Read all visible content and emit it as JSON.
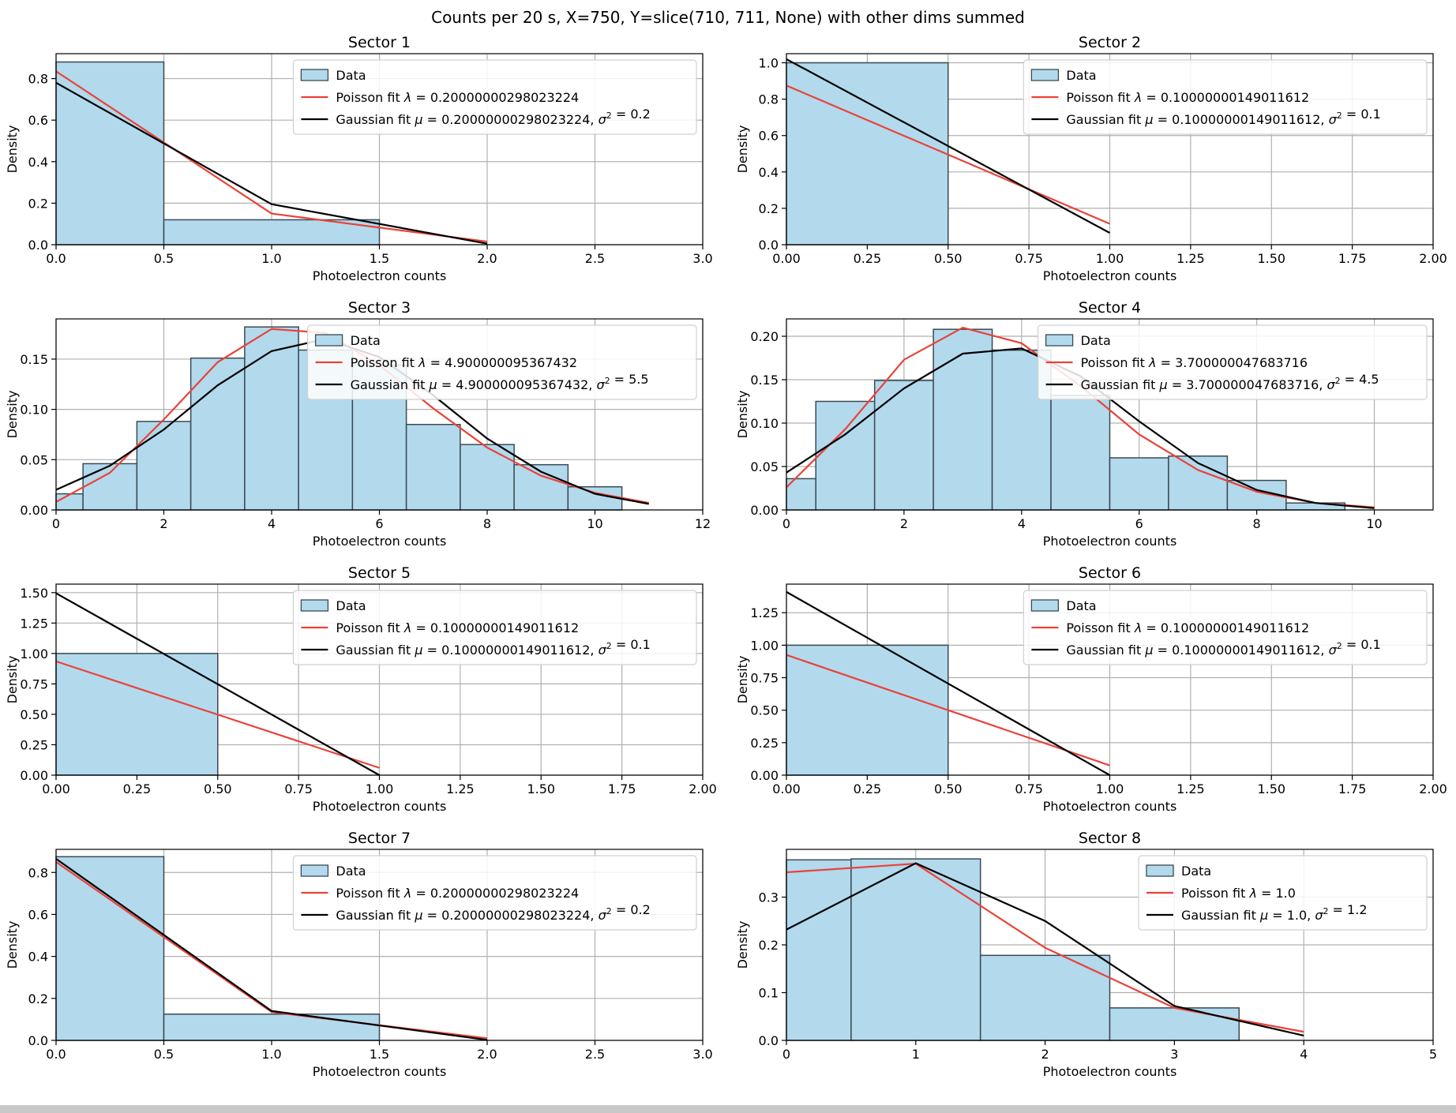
{
  "figure": {
    "suptitle": "Counts per 20 s, X=750, Y=slice(710, 711, None) with other dims summed"
  },
  "colors": {
    "bar_fill": "#b3d9ec",
    "bar_edge": "#3a4a55",
    "poisson": "#e8433a",
    "gaussian": "#000000",
    "grid": "#b0b0b0"
  },
  "chart_data": [
    {
      "type": "bar",
      "title": "Sector 1",
      "xlabel": "Photoelectron counts",
      "ylabel": "Density",
      "xlim": [
        0,
        3
      ],
      "ylim": [
        0,
        0.92
      ],
      "xticks": [
        0,
        0.5,
        1,
        1.5,
        2,
        2.5,
        3
      ],
      "xtick_labels": [
        "0.0",
        "0.5",
        "1.0",
        "1.5",
        "2.0",
        "2.5",
        "3.0"
      ],
      "yticks": [
        0,
        0.2,
        0.4,
        0.6,
        0.8
      ],
      "ytick_labels": [
        "0.0",
        "0.2",
        "0.4",
        "0.6",
        "0.8"
      ],
      "grid": true,
      "legend_position": "top-right",
      "legend": [
        "Data",
        "Poisson fit λ = 0.20000000298023224",
        "Gaussian fit μ = 0.20000000298023224, σ² = 0.2"
      ],
      "bins": [
        {
          "x0": 0,
          "x1": 0.5,
          "y": 0.88
        },
        {
          "x0": 0.5,
          "x1": 1.5,
          "y": 0.12
        }
      ],
      "poisson": {
        "x": [
          0,
          1,
          2
        ],
        "y": [
          0.835,
          0.15,
          0.015
        ]
      },
      "gaussian": {
        "x": [
          0,
          1,
          2
        ],
        "y": [
          0.78,
          0.195,
          0.005
        ]
      }
    },
    {
      "type": "bar",
      "title": "Sector 2",
      "xlabel": "Photoelectron counts",
      "ylabel": "Density",
      "xlim": [
        0,
        2
      ],
      "ylim": [
        0,
        1.05
      ],
      "xticks": [
        0,
        0.25,
        0.5,
        0.75,
        1,
        1.25,
        1.5,
        1.75,
        2
      ],
      "xtick_labels": [
        "0.00",
        "0.25",
        "0.50",
        "0.75",
        "1.00",
        "1.25",
        "1.50",
        "1.75",
        "2.00"
      ],
      "yticks": [
        0,
        0.2,
        0.4,
        0.6,
        0.8,
        1.0
      ],
      "ytick_labels": [
        "0.0",
        "0.2",
        "0.4",
        "0.6",
        "0.8",
        "1.0"
      ],
      "grid": true,
      "legend_position": "top-right",
      "legend": [
        "Data",
        "Poisson fit λ = 0.10000000149011612",
        "Gaussian fit μ = 0.10000000149011612, σ² = 0.1"
      ],
      "bins": [
        {
          "x0": 0,
          "x1": 0.5,
          "y": 1.0
        }
      ],
      "poisson": {
        "x": [
          0,
          1
        ],
        "y": [
          0.875,
          0.115
        ]
      },
      "gaussian": {
        "x": [
          0,
          1
        ],
        "y": [
          1.02,
          0.065
        ]
      }
    },
    {
      "type": "bar",
      "title": "Sector 3",
      "xlabel": "Photoelectron counts",
      "ylabel": "Density",
      "xlim": [
        0,
        12
      ],
      "ylim": [
        0,
        0.19
      ],
      "xticks": [
        0,
        2,
        4,
        6,
        8,
        10,
        12
      ],
      "xtick_labels": [
        "0",
        "2",
        "4",
        "6",
        "8",
        "10",
        "12"
      ],
      "yticks": [
        0,
        0.05,
        0.1,
        0.15
      ],
      "ytick_labels": [
        "0.00",
        "0.05",
        "0.10",
        "0.15"
      ],
      "grid": true,
      "legend_position": "top-right",
      "legend": [
        "Data",
        "Poisson fit λ = 4.900000095367432",
        "Gaussian fit μ = 4.900000095367432, σ² = 5.5"
      ],
      "bins": [
        {
          "x0": 0,
          "x1": 0.5,
          "y": 0.016
        },
        {
          "x0": 0.5,
          "x1": 1.5,
          "y": 0.046
        },
        {
          "x0": 1.5,
          "x1": 2.5,
          "y": 0.088
        },
        {
          "x0": 2.5,
          "x1": 3.5,
          "y": 0.151
        },
        {
          "x0": 3.5,
          "x1": 4.5,
          "y": 0.182
        },
        {
          "x0": 4.5,
          "x1": 5.5,
          "y": 0.159
        },
        {
          "x0": 5.5,
          "x1": 6.5,
          "y": 0.144
        },
        {
          "x0": 6.5,
          "x1": 7.5,
          "y": 0.085
        },
        {
          "x0": 7.5,
          "x1": 8.5,
          "y": 0.065
        },
        {
          "x0": 8.5,
          "x1": 9.5,
          "y": 0.045
        },
        {
          "x0": 9.5,
          "x1": 10.5,
          "y": 0.023
        }
      ],
      "poisson": {
        "x": [
          0,
          1,
          2,
          3,
          4,
          5,
          6,
          7,
          8,
          9,
          10,
          11
        ],
        "y": [
          0.008,
          0.037,
          0.09,
          0.147,
          0.18,
          0.176,
          0.144,
          0.101,
          0.062,
          0.034,
          0.017,
          0.007
        ]
      },
      "gaussian": {
        "x": [
          0,
          1,
          2,
          3,
          4,
          5,
          6,
          7,
          8,
          9,
          10,
          11
        ],
        "y": [
          0.02,
          0.044,
          0.08,
          0.124,
          0.158,
          0.17,
          0.152,
          0.114,
          0.071,
          0.038,
          0.016,
          0.006
        ]
      }
    },
    {
      "type": "bar",
      "title": "Sector 4",
      "xlabel": "Photoelectron counts",
      "ylabel": "Density",
      "xlim": [
        0,
        11
      ],
      "ylim": [
        0,
        0.22
      ],
      "xticks": [
        0,
        2,
        4,
        6,
        8,
        10
      ],
      "xtick_labels": [
        "0",
        "2",
        "4",
        "6",
        "8",
        "10"
      ],
      "yticks": [
        0,
        0.05,
        0.1,
        0.15,
        0.2
      ],
      "ytick_labels": [
        "0.00",
        "0.05",
        "0.10",
        "0.15",
        "0.20"
      ],
      "grid": true,
      "legend_position": "top-right",
      "legend": [
        "Data",
        "Poisson fit λ = 3.700000047683716",
        "Gaussian fit μ = 3.700000047683716, σ² = 4.5"
      ],
      "bins": [
        {
          "x0": 0,
          "x1": 0.5,
          "y": 0.036
        },
        {
          "x0": 0.5,
          "x1": 1.5,
          "y": 0.125
        },
        {
          "x0": 1.5,
          "x1": 2.5,
          "y": 0.149
        },
        {
          "x0": 2.5,
          "x1": 3.5,
          "y": 0.208
        },
        {
          "x0": 3.5,
          "x1": 4.5,
          "y": 0.184
        },
        {
          "x0": 4.5,
          "x1": 5.5,
          "y": 0.132
        },
        {
          "x0": 5.5,
          "x1": 6.5,
          "y": 0.06
        },
        {
          "x0": 6.5,
          "x1": 7.5,
          "y": 0.062
        },
        {
          "x0": 7.5,
          "x1": 8.5,
          "y": 0.034
        },
        {
          "x0": 8.5,
          "x1": 9.5,
          "y": 0.008
        }
      ],
      "poisson": {
        "x": [
          0,
          1,
          2,
          3,
          4,
          5,
          6,
          7,
          8,
          9,
          10
        ],
        "y": [
          0.026,
          0.093,
          0.173,
          0.21,
          0.192,
          0.143,
          0.087,
          0.046,
          0.021,
          0.008,
          0.003
        ]
      },
      "gaussian": {
        "x": [
          0,
          1,
          2,
          3,
          4,
          5,
          6,
          7,
          8,
          9,
          10
        ],
        "y": [
          0.043,
          0.087,
          0.14,
          0.18,
          0.186,
          0.154,
          0.102,
          0.054,
          0.023,
          0.008,
          0.002
        ]
      }
    },
    {
      "type": "bar",
      "title": "Sector 5",
      "xlabel": "Photoelectron counts",
      "ylabel": "Density",
      "xlim": [
        0,
        2
      ],
      "ylim": [
        0,
        1.57
      ],
      "xticks": [
        0,
        0.25,
        0.5,
        0.75,
        1,
        1.25,
        1.5,
        1.75,
        2
      ],
      "xtick_labels": [
        "0.00",
        "0.25",
        "0.50",
        "0.75",
        "1.00",
        "1.25",
        "1.50",
        "1.75",
        "2.00"
      ],
      "yticks": [
        0,
        0.25,
        0.5,
        0.75,
        1.0,
        1.25,
        1.5
      ],
      "ytick_labels": [
        "0.00",
        "0.25",
        "0.50",
        "0.75",
        "1.00",
        "1.25",
        "1.50"
      ],
      "grid": true,
      "legend_position": "top-right",
      "legend": [
        "Data",
        "Poisson fit λ = 0.10000000149011612",
        "Gaussian fit μ = 0.10000000149011612, σ² = 0.1"
      ],
      "bins": [
        {
          "x0": 0,
          "x1": 0.5,
          "y": 1.0
        }
      ],
      "poisson": {
        "x": [
          0,
          1
        ],
        "y": [
          0.935,
          0.06
        ]
      },
      "gaussian": {
        "x": [
          0,
          1
        ],
        "y": [
          1.495,
          0.0
        ]
      }
    },
    {
      "type": "bar",
      "title": "Sector 6",
      "xlabel": "Photoelectron counts",
      "ylabel": "Density",
      "xlim": [
        0,
        2
      ],
      "ylim": [
        0,
        1.47
      ],
      "xticks": [
        0,
        0.25,
        0.5,
        0.75,
        1,
        1.25,
        1.5,
        1.75,
        2
      ],
      "xtick_labels": [
        "0.00",
        "0.25",
        "0.50",
        "0.75",
        "1.00",
        "1.25",
        "1.50",
        "1.75",
        "2.00"
      ],
      "yticks": [
        0,
        0.25,
        0.5,
        0.75,
        1.0,
        1.25
      ],
      "ytick_labels": [
        "0.00",
        "0.25",
        "0.50",
        "0.75",
        "1.00",
        "1.25"
      ],
      "grid": true,
      "legend_position": "top-right",
      "legend": [
        "Data",
        "Poisson fit λ = 0.10000000149011612",
        "Gaussian fit μ = 0.10000000149011612, σ² = 0.1"
      ],
      "bins": [
        {
          "x0": 0,
          "x1": 0.5,
          "y": 1.0
        }
      ],
      "poisson": {
        "x": [
          0,
          1
        ],
        "y": [
          0.925,
          0.075
        ]
      },
      "gaussian": {
        "x": [
          0,
          1
        ],
        "y": [
          1.41,
          0.0
        ]
      }
    },
    {
      "type": "bar",
      "title": "Sector 7",
      "xlabel": "Photoelectron counts",
      "ylabel": "Density",
      "xlim": [
        0,
        3
      ],
      "ylim": [
        0,
        0.91
      ],
      "xticks": [
        0,
        0.5,
        1,
        1.5,
        2,
        2.5,
        3
      ],
      "xtick_labels": [
        "0.0",
        "0.5",
        "1.0",
        "1.5",
        "2.0",
        "2.5",
        "3.0"
      ],
      "yticks": [
        0,
        0.2,
        0.4,
        0.6,
        0.8
      ],
      "ytick_labels": [
        "0.0",
        "0.2",
        "0.4",
        "0.6",
        "0.8"
      ],
      "grid": true,
      "legend_position": "top-right",
      "legend": [
        "Data",
        "Poisson fit λ = 0.20000000298023224",
        "Gaussian fit μ = 0.20000000298023224, σ² = 0.2"
      ],
      "bins": [
        {
          "x0": 0,
          "x1": 0.5,
          "y": 0.875
        },
        {
          "x0": 0.5,
          "x1": 1.5,
          "y": 0.125
        }
      ],
      "poisson": {
        "x": [
          0,
          1,
          2
        ],
        "y": [
          0.85,
          0.135,
          0.01
        ]
      },
      "gaussian": {
        "x": [
          0,
          1,
          2
        ],
        "y": [
          0.865,
          0.14,
          0.002
        ]
      }
    },
    {
      "type": "bar",
      "title": "Sector 8",
      "xlabel": "Photoelectron counts",
      "ylabel": "Density",
      "xlim": [
        0,
        5
      ],
      "ylim": [
        0,
        0.4
      ],
      "xticks": [
        0,
        1,
        2,
        3,
        4,
        5
      ],
      "xtick_labels": [
        "0",
        "1",
        "2",
        "3",
        "4",
        "5"
      ],
      "yticks": [
        0,
        0.1,
        0.2,
        0.3
      ],
      "ytick_labels": [
        "0.0",
        "0.1",
        "0.2",
        "0.3"
      ],
      "grid": true,
      "legend_position": "top-right",
      "legend": [
        "Data",
        "Poisson fit λ = 1.0",
        "Gaussian fit μ = 1.0, σ² = 1.2"
      ],
      "bins": [
        {
          "x0": 0,
          "x1": 0.5,
          "y": 0.378
        },
        {
          "x0": 0.5,
          "x1": 1.5,
          "y": 0.38
        },
        {
          "x0": 1.5,
          "x1": 2.5,
          "y": 0.178
        },
        {
          "x0": 2.5,
          "x1": 3.5,
          "y": 0.068
        }
      ],
      "poisson": {
        "x": [
          0,
          1,
          2,
          3,
          4
        ],
        "y": [
          0.352,
          0.37,
          0.194,
          0.068,
          0.018
        ]
      },
      "gaussian": {
        "x": [
          0,
          1,
          2,
          3,
          4
        ],
        "y": [
          0.232,
          0.371,
          0.25,
          0.072,
          0.01
        ]
      }
    }
  ]
}
